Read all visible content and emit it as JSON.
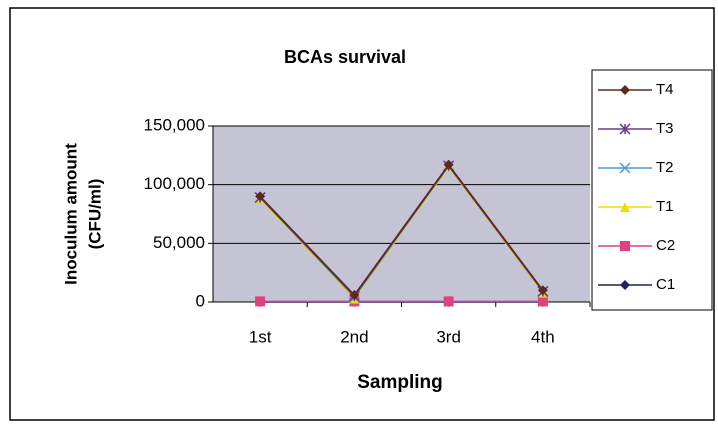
{
  "chart_data": {
    "type": "line",
    "title": "BCAs survival",
    "xlabel": "Sampling",
    "ylabel": [
      "Inoculum amount",
      "(CFU/ml)"
    ],
    "categories": [
      "1st",
      "2nd",
      "3rd",
      "4th"
    ],
    "series": [
      {
        "name": "T4",
        "color": "#5a2a20",
        "marker": "diamond",
        "values": [
          90000,
          6000,
          117000,
          10000
        ]
      },
      {
        "name": "T3",
        "color": "#6a3a8a",
        "marker": "star",
        "values": [
          89000,
          5000,
          116000,
          9000
        ]
      },
      {
        "name": "T2",
        "color": "#4a9ad8",
        "marker": "x",
        "values": [
          89000,
          4000,
          116000,
          9000
        ]
      },
      {
        "name": "T1",
        "color": "#e8e000",
        "marker": "triangle",
        "values": [
          88000,
          3000,
          115000,
          8000
        ]
      },
      {
        "name": "C2",
        "color": "#e04080",
        "marker": "square",
        "values": [
          500,
          500,
          500,
          500
        ]
      },
      {
        "name": "C1",
        "color": "#202060",
        "marker": "diamond",
        "values": [
          0,
          0,
          0,
          0
        ]
      }
    ],
    "ylim": [
      0,
      150000
    ],
    "yticks": [
      0,
      {
        "value": 50000,
        "label": "50,000"
      },
      {
        "value": 100000,
        "label": "100,000"
      },
      {
        "value": 150000,
        "label": "150,000"
      }
    ],
    "grid": true,
    "legend": "right"
  }
}
